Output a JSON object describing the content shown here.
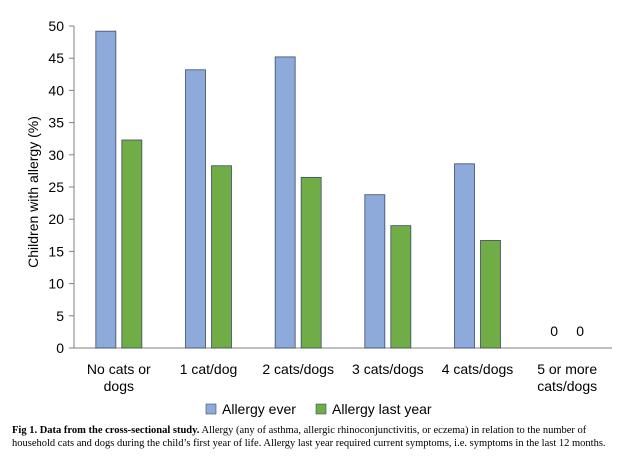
{
  "chart_data": {
    "type": "bar",
    "ylabel": "Children with allergy (%)",
    "ylim": [
      0,
      50
    ],
    "yticks": [
      0,
      5,
      10,
      15,
      20,
      25,
      30,
      35,
      40,
      45,
      50
    ],
    "grid": false,
    "legend_position": "bottom",
    "categories": [
      [
        "No cats or",
        "dogs"
      ],
      [
        "1 cat/dog"
      ],
      [
        "2 cats/dogs"
      ],
      [
        "3 cats/dogs"
      ],
      [
        "4 cats/dogs"
      ],
      [
        "5 or more",
        "cats/dogs"
      ]
    ],
    "series": [
      {
        "name": "Allergy ever",
        "color": "#8eaadb",
        "values": [
          49.2,
          43.2,
          45.2,
          23.8,
          28.6,
          0
        ]
      },
      {
        "name": "Allergy last year",
        "color": "#70ad47",
        "values": [
          32.3,
          28.3,
          26.5,
          19.0,
          16.7,
          0
        ]
      }
    ],
    "data_labels": {
      "5 or more cats/dogs": [
        "0",
        "0"
      ]
    }
  },
  "caption": {
    "title": "Fig 1. Data from the cross-sectional study.",
    "text": " Allergy (any of asthma, allergic rhinoconjunctivitis, or eczema) in relation to the number of household cats and dogs during the child’s first year of life. Allergy last year required current symptoms, i.e. symptoms in the last 12 months."
  }
}
